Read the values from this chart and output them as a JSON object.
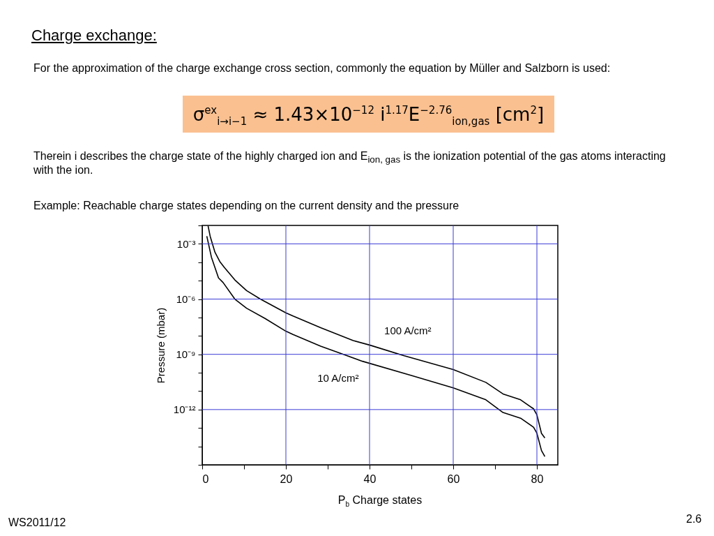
{
  "chart_data": {
    "type": "line",
    "title": "Charge exchange:",
    "subtitle": "For the approximation of the charge exchange cross section, commonly the equation by Müller and Salzborn is used:",
    "xlabel": "P$_{b}$ Charge states",
    "ylabel": "Pressure (mbar)",
    "annotations": [
      "σ$^{ex}$$_{i→i−1}$ ≈ 1.43×10$^{−12}$ i$^{1.17}$E$^{−2.76}$$_{ion,gas}$ [cm$^{2}$]",
      "Therein i describes the charge state of the highly charged ion and E$_{ion, gas}$ is the ionization potential of the gas atoms interacting with the ion.",
      "Example: Reachable charge states depending on the current density and the pressure",
      "WS2011/12",
      "2.6"
    ],
    "series": [
      {
        "name": "100 A/cm²",
        "color": "#000000",
        "x": [
          1.4,
          1.9,
          3.05,
          4.2,
          5.3,
          7.8,
          10.6,
          13.9,
          20,
          21.7,
          28.3,
          36.1,
          40,
          48.3,
          60,
          67.8,
          71.9,
          76.1,
          79.2,
          80,
          81.1,
          81.9
        ],
        "values": [
          0.0095,
          0.0026,
          0.00035,
          0.00011,
          5.2e-05,
          1.1e-05,
          2.9e-06,
          1e-06,
          1.8e-07,
          1.2e-07,
          2.8e-08,
          5.6e-09,
          3.2e-09,
          8.3e-10,
          1.5e-10,
          3e-11,
          7.1e-12,
          3.4e-12,
          1.1e-12,
          5.2e-13,
          5.1e-14,
          2.9e-14
        ]
      },
      {
        "name": "10 A/cm²",
        "color": "#000000",
        "x": [
          1.1,
          2.2,
          3.9,
          5,
          7.8,
          10.6,
          15,
          20,
          21.7,
          28.3,
          38.3,
          50,
          60,
          67.8,
          71.9,
          76.1,
          79.2,
          80,
          81.1,
          81.9
        ],
        "values": [
          0.0026,
          0.00019,
          1.4e-05,
          7.9e-06,
          1e-06,
          3.2e-07,
          8.9e-08,
          1.8e-08,
          1.2e-08,
          2.8e-09,
          4.2e-10,
          7.1e-11,
          1.5e-11,
          3.4e-12,
          6.9e-13,
          3.4e-13,
          1.1e-13,
          5.2e-14,
          5.9e-15,
          2.8e-15
        ]
      }
    ],
    "xlim": [
      0,
      85
    ],
    "xticks": [
      0,
      {
        "value": 10,
        "label": null
      },
      20,
      {
        "value": 30,
        "label": null
      },
      40,
      {
        "value": 50,
        "label": null
      },
      60,
      {
        "value": 70,
        "label": null
      },
      80
    ],
    "ylim": [
      1e-15,
      0.01
    ],
    "yticks": [
      {
        "value": 1e-15,
        "label": null
      },
      {
        "value": 1e-14,
        "label": null
      },
      {
        "value": 1e-13,
        "label": null
      },
      {
        "value": 1e-12,
        "label": "10⁻¹²"
      },
      {
        "value": 1e-11,
        "label": null
      },
      {
        "value": 1e-10,
        "label": null
      },
      {
        "value": 1e-09,
        "label": "10⁻⁹"
      },
      {
        "value": 1e-08,
        "label": null
      },
      {
        "value": 1e-07,
        "label": null
      },
      {
        "value": 1e-06,
        "label": "10⁻⁶"
      },
      {
        "value": 1e-05,
        "label": null
      },
      {
        "value": 0.0001,
        "label": null
      },
      {
        "value": 0.001,
        "label": "10⁻³"
      },
      {
        "value": 0.01,
        "label": null
      }
    ],
    "log": true,
    "grid": true,
    "line_style": "solid",
    "marker": "none"
  }
}
